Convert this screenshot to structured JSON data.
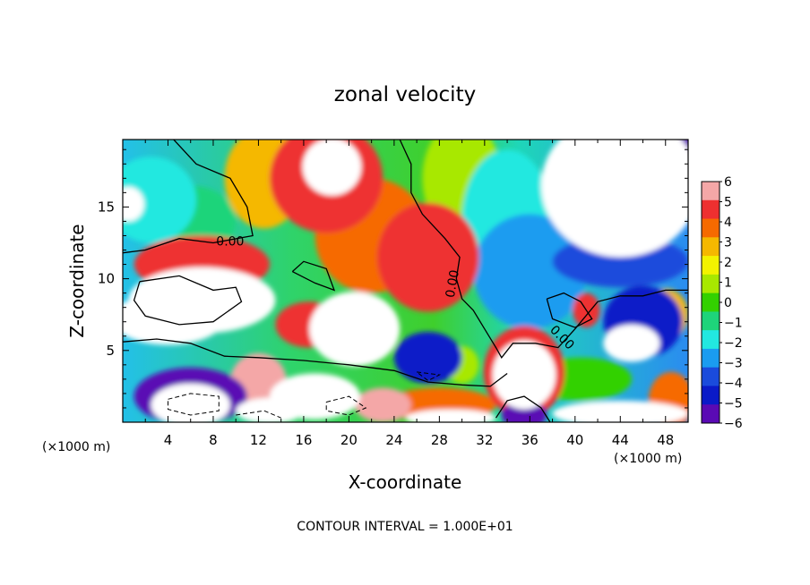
{
  "chart_data": {
    "type": "heatmap",
    "title": "zonal velocity",
    "xlabel": "X-coordinate",
    "ylabel": "Z-coordinate",
    "x_unit_left": "(×1000 m)",
    "x_unit_right": "(×1000 m)",
    "xlim": [
      0,
      50
    ],
    "ylim": [
      0,
      19.7
    ],
    "x_ticks": [
      4,
      8,
      12,
      16,
      20,
      24,
      28,
      32,
      36,
      40,
      44,
      48
    ],
    "y_ticks": [
      5,
      10,
      15
    ],
    "colorbar": {
      "levels": [
        6,
        5,
        4,
        3,
        2,
        1,
        0,
        -1,
        -2,
        -3,
        -4,
        -5,
        -6
      ],
      "colors": [
        "#f4a7a7",
        "#ee3030",
        "#f66a00",
        "#f5b800",
        "#f3f300",
        "#a8e800",
        "#33d100",
        "#1ed47a",
        "#22e8e0",
        "#1a9cf0",
        "#1a4bdc",
        "#0a1ac8",
        "#5a0ab4"
      ],
      "overflow_color": "#ffffff"
    },
    "contour_labels": [
      "0.00",
      "0.00",
      "0.00"
    ],
    "footnote": "CONTOUR INTERVAL = 1.000E+01",
    "blobs": [
      {
        "x": 18,
        "y": 17,
        "rx": 5,
        "ry": 3.8,
        "v": 5.2
      },
      {
        "x": 18.5,
        "y": 17.8,
        "rx": 2.6,
        "ry": 2.0,
        "v": 8
      },
      {
        "x": 27,
        "y": 11.5,
        "rx": 4.5,
        "ry": 3.8,
        "v": 4.5
      },
      {
        "x": 22,
        "y": 13,
        "rx": 5,
        "ry": 4,
        "v": 3.5
      },
      {
        "x": 12.5,
        "y": 17,
        "rx": 3.5,
        "ry": 3.5,
        "v": 2.5
      },
      {
        "x": 30,
        "y": 17,
        "rx": 3.5,
        "ry": 4,
        "v": 1.0
      },
      {
        "x": 34,
        "y": 14,
        "rx": 4,
        "ry": 5,
        "v": -1.8
      },
      {
        "x": 36,
        "y": 10.5,
        "rx": 5,
        "ry": 4,
        "v": -2.8
      },
      {
        "x": 41,
        "y": 15,
        "rx": 3,
        "ry": 5,
        "v": -3.5
      },
      {
        "x": 44,
        "y": 16.5,
        "rx": 7,
        "ry": 5,
        "v": -7
      },
      {
        "x": 49,
        "y": 18.5,
        "rx": 3.5,
        "ry": 3,
        "v": -6
      },
      {
        "x": 44,
        "y": 11.2,
        "rx": 6,
        "ry": 1.8,
        "v": -4.5
      },
      {
        "x": 2.5,
        "y": 15.5,
        "rx": 4,
        "ry": 3,
        "v": -2.4
      },
      {
        "x": 0.5,
        "y": 15.2,
        "rx": 1.4,
        "ry": 1.2,
        "v": -7
      },
      {
        "x": 6,
        "y": 14,
        "rx": 4,
        "ry": 2.5,
        "v": -1.5
      },
      {
        "x": 7,
        "y": 11,
        "rx": 6,
        "ry": 2,
        "v": 4.5
      },
      {
        "x": 7,
        "y": 8.5,
        "rx": 6.5,
        "ry": 2.3,
        "v": 7.5
      },
      {
        "x": 4,
        "y": 7.2,
        "rx": 5,
        "ry": 1.8,
        "v": 6.5
      },
      {
        "x": 20.5,
        "y": 6.5,
        "rx": 4,
        "ry": 2.6,
        "v": 8
      },
      {
        "x": 16.5,
        "y": 6.8,
        "rx": 3,
        "ry": 1.6,
        "v": 5
      },
      {
        "x": 27,
        "y": 4.5,
        "rx": 3,
        "ry": 1.8,
        "v": -5
      },
      {
        "x": 30,
        "y": 4,
        "rx": 1.5,
        "ry": 1.3,
        "v": 0.5
      },
      {
        "x": 35.5,
        "y": 3.3,
        "rx": 2.8,
        "ry": 2.4,
        "v": 8
      },
      {
        "x": 35.5,
        "y": 3.5,
        "rx": 3.6,
        "ry": 3.2,
        "v": 4.5
      },
      {
        "x": 41,
        "y": 7.8,
        "rx": 1.2,
        "ry": 1.2,
        "v": 5.2
      },
      {
        "x": 46,
        "y": 7,
        "rx": 3.5,
        "ry": 2.5,
        "v": -5
      },
      {
        "x": 45,
        "y": 5.5,
        "rx": 2.5,
        "ry": 1.3,
        "v": 7
      },
      {
        "x": 48,
        "y": 7.5,
        "rx": 2,
        "ry": 1.8,
        "v": 3
      },
      {
        "x": 40.5,
        "y": 3.0,
        "rx": 4.5,
        "ry": 1.5,
        "v": -0.2
      },
      {
        "x": 6,
        "y": 1.8,
        "rx": 5,
        "ry": 2,
        "v": -6
      },
      {
        "x": 6,
        "y": 1.2,
        "rx": 3.5,
        "ry": 1.5,
        "v": -8
      },
      {
        "x": 12,
        "y": 2.8,
        "rx": 2.5,
        "ry": 2,
        "v": 5.5
      },
      {
        "x": 17,
        "y": 1.8,
        "rx": 4,
        "ry": 1.6,
        "v": 8
      },
      {
        "x": 13,
        "y": 0.8,
        "rx": 3,
        "ry": 0.9,
        "v": -6.5
      },
      {
        "x": 23,
        "y": 1.2,
        "rx": 2.5,
        "ry": 1.2,
        "v": 6
      },
      {
        "x": 28,
        "y": 1.2,
        "rx": 5,
        "ry": 1.2,
        "v": 4
      },
      {
        "x": 29,
        "y": 0.3,
        "rx": 4,
        "ry": 0.6,
        "v": 7
      },
      {
        "x": 35.5,
        "y": 0.5,
        "rx": 2,
        "ry": 1,
        "v": -6
      },
      {
        "x": 44,
        "y": 0.6,
        "rx": 6,
        "ry": 0.9,
        "v": 7
      },
      {
        "x": 48.5,
        "y": 1.5,
        "rx": 2,
        "ry": 2,
        "v": 3.5
      }
    ],
    "contours": [
      [
        [
          4.5,
          19.7
        ],
        [
          6.5,
          18
        ],
        [
          9.5,
          17
        ],
        [
          11,
          15
        ],
        [
          11.5,
          13
        ],
        [
          8,
          12.5
        ],
        [
          5,
          12.8
        ],
        [
          2,
          12
        ],
        [
          0,
          11.8
        ]
      ],
      [
        [
          24.5,
          19.7
        ],
        [
          25.5,
          18
        ],
        [
          25.5,
          16
        ],
        [
          26.5,
          14.5
        ],
        [
          28.5,
          12.8
        ],
        [
          29.8,
          11.5
        ],
        [
          29.5,
          10
        ],
        [
          30,
          8.6
        ],
        [
          31,
          7.8
        ],
        [
          32,
          6.5
        ],
        [
          33,
          5.2
        ],
        [
          33.5,
          4.5
        ],
        [
          34.5,
          5.5
        ],
        [
          36.5,
          5.5
        ],
        [
          38.5,
          5.2
        ],
        [
          40,
          6.5
        ],
        [
          42,
          8.4
        ],
        [
          44,
          8.8
        ],
        [
          46,
          8.8
        ],
        [
          48,
          9.2
        ],
        [
          50,
          9.2
        ]
      ],
      [
        [
          0,
          5.6
        ],
        [
          3,
          5.8
        ],
        [
          6,
          5.5
        ],
        [
          9,
          4.6
        ],
        [
          12,
          4.5
        ],
        [
          16,
          4.3
        ],
        [
          20,
          4.0
        ],
        [
          24,
          3.6
        ],
        [
          27,
          2.8
        ],
        [
          30,
          2.6
        ],
        [
          32.5,
          2.5
        ],
        [
          34,
          3.4
        ]
      ],
      [
        [
          33,
          0.3
        ],
        [
          34,
          1.5
        ],
        [
          35.5,
          1.8
        ],
        [
          37,
          1.0
        ],
        [
          37.8,
          0
        ]
      ],
      [
        [
          15,
          10.5
        ],
        [
          17,
          9.7
        ],
        [
          18.7,
          9.2
        ],
        [
          18,
          10.7
        ],
        [
          16,
          11.2
        ],
        [
          15,
          10.5
        ]
      ],
      [
        [
          1.5,
          9.8
        ],
        [
          5,
          10.2
        ],
        [
          8,
          9.2
        ],
        [
          10,
          9.4
        ],
        [
          10.5,
          8.4
        ],
        [
          8,
          7.0
        ],
        [
          5,
          6.8
        ],
        [
          2,
          7.4
        ],
        [
          1.0,
          8.5
        ],
        [
          1.5,
          9.8
        ]
      ],
      [
        [
          37.5,
          8.6
        ],
        [
          39,
          9.0
        ],
        [
          40.5,
          8.4
        ],
        [
          41.5,
          7.2
        ],
        [
          40,
          6.6
        ],
        [
          38,
          7.2
        ],
        [
          37.5,
          8.6
        ]
      ]
    ],
    "dashed_contours": [
      [
        [
          4,
          1.6
        ],
        [
          6,
          2.0
        ],
        [
          8.5,
          1.8
        ],
        [
          8.5,
          0.8
        ],
        [
          6,
          0.5
        ],
        [
          4,
          0.9
        ],
        [
          4,
          1.6
        ]
      ],
      [
        [
          18,
          1.4
        ],
        [
          20,
          1.8
        ],
        [
          21.5,
          1.0
        ],
        [
          20,
          0.5
        ],
        [
          18,
          0.8
        ],
        [
          18,
          1.4
        ]
      ],
      [
        [
          26,
          3.5
        ],
        [
          28,
          3.3
        ],
        [
          27,
          2.9
        ],
        [
          26,
          3.5
        ]
      ],
      [
        [
          10,
          0.5
        ],
        [
          12.5,
          0.8
        ],
        [
          14,
          0.3
        ]
      ]
    ]
  }
}
